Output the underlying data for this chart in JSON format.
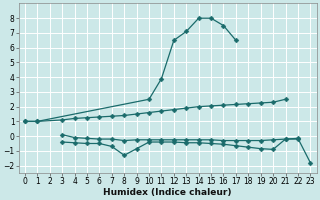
{
  "xlabel": "Humidex (Indice chaleur)",
  "background_color": "#cce8e8",
  "grid_color": "#ffffff",
  "line_color": "#1a6b6b",
  "xlim": [
    -0.5,
    23.5
  ],
  "ylim": [
    -2.5,
    9.0
  ],
  "xticks": [
    0,
    1,
    2,
    3,
    4,
    5,
    6,
    7,
    8,
    9,
    10,
    11,
    12,
    13,
    14,
    15,
    16,
    17,
    18,
    19,
    20,
    21,
    22,
    23
  ],
  "yticks": [
    -2,
    -1,
    0,
    1,
    2,
    3,
    4,
    5,
    6,
    7,
    8
  ],
  "series": [
    {
      "x": [
        0,
        1,
        10,
        11,
        12,
        13,
        14,
        15,
        16,
        17
      ],
      "y": [
        1.0,
        1.0,
        2.5,
        3.9,
        6.5,
        7.1,
        8.0,
        8.0,
        7.5,
        6.5
      ],
      "marker": "D",
      "markersize": 2.5
    },
    {
      "x": [
        0,
        1,
        3,
        4,
        5,
        6,
        7,
        8,
        9,
        10,
        11,
        12,
        13,
        14,
        15,
        16,
        17,
        18,
        19,
        20,
        21
      ],
      "y": [
        1.0,
        1.0,
        1.1,
        1.2,
        1.25,
        1.3,
        1.35,
        1.4,
        1.5,
        1.6,
        1.7,
        1.8,
        1.9,
        2.0,
        2.05,
        2.1,
        2.15,
        2.2,
        2.25,
        2.3,
        2.5
      ],
      "marker": "D",
      "markersize": 2.5
    },
    {
      "x": [
        3,
        4,
        5,
        6,
        7,
        8,
        9,
        10,
        11,
        12,
        13,
        14,
        15,
        16,
        17,
        18,
        19,
        20,
        21,
        22
      ],
      "y": [
        0.1,
        -0.1,
        -0.15,
        -0.2,
        -0.2,
        -0.3,
        -0.25,
        -0.25,
        -0.25,
        -0.25,
        -0.25,
        -0.25,
        -0.25,
        -0.3,
        -0.3,
        -0.3,
        -0.3,
        -0.25,
        -0.2,
        -0.2
      ],
      "marker": "D",
      "markersize": 2.5
    },
    {
      "x": [
        3,
        4,
        5,
        6,
        7,
        8,
        9,
        10,
        11,
        12,
        13,
        14,
        15,
        16,
        17,
        18,
        19,
        20,
        21,
        22,
        23
      ],
      "y": [
        -0.4,
        -0.45,
        -0.5,
        -0.5,
        -0.7,
        -1.3,
        -0.85,
        -0.4,
        -0.4,
        -0.4,
        -0.45,
        -0.45,
        -0.5,
        -0.55,
        -0.65,
        -0.75,
        -0.85,
        -0.9,
        -0.2,
        -0.15,
        -1.8
      ],
      "marker": "D",
      "markersize": 2.5
    }
  ]
}
